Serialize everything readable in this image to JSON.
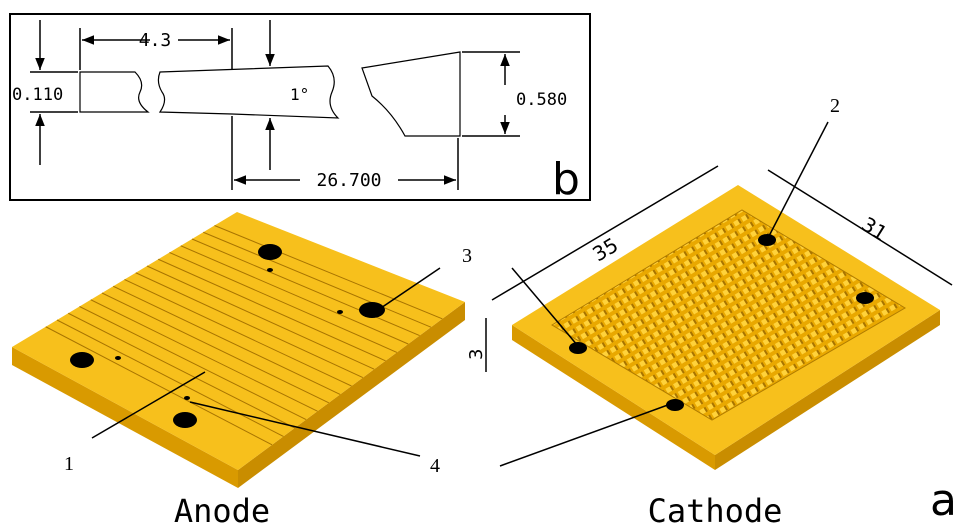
{
  "panel_b": {
    "dimensions": [
      "4.3",
      "0.110",
      "1°",
      "0.580",
      "26.700"
    ],
    "label": "b"
  },
  "panel_a": {
    "callouts": [
      "1",
      "2",
      "3",
      "4"
    ],
    "dimensions": [
      "35",
      "31",
      "3"
    ],
    "captions": [
      "Anode",
      "Cathode"
    ],
    "label": "a"
  }
}
